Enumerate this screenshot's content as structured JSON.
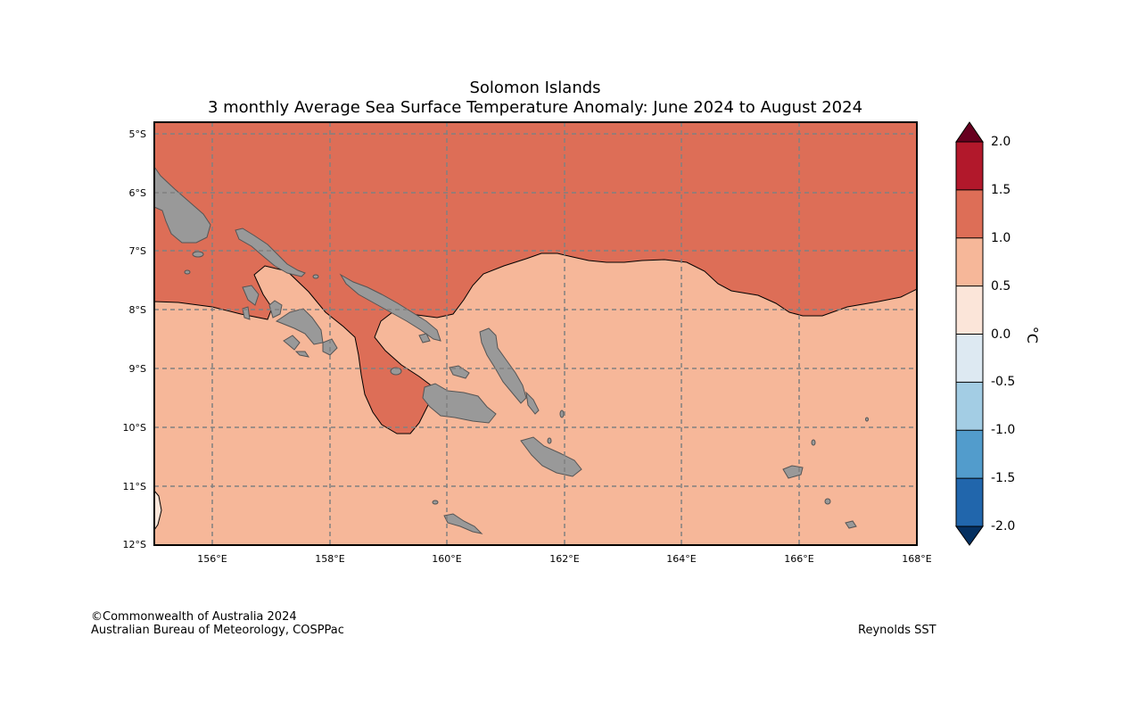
{
  "title": {
    "line1": "Solomon Islands",
    "line2": "3 monthly Average Sea Surface Temperature Anomaly: June 2024 to August 2024"
  },
  "map": {
    "region": "Solomon Islands",
    "lat_range": [
      "5°S",
      "12°S"
    ],
    "lon_range": [
      "155°E",
      "168°E"
    ],
    "lat_labels": [
      "5°S",
      "6°S",
      "7°S",
      "8°S",
      "9°S",
      "10°S",
      "11°S",
      "12°S"
    ],
    "lon_labels": [
      "156°E",
      "158°E",
      "160°E",
      "162°E",
      "164°E",
      "166°E",
      "168°E"
    ],
    "colors": {
      "anomaly_1_0_to_1_5": "#dd6e57",
      "anomaly_0_5_to_1_0": "#f6b799",
      "anomaly_0_0_to_0_5": "#fbe5d9",
      "land": "#999999",
      "gridline": "#808080"
    }
  },
  "colorbar": {
    "unit": "°C",
    "labels": [
      "2.0",
      "1.5",
      "1.0",
      "0.5",
      "0.0",
      "-0.5",
      "-1.0",
      "-1.5",
      "-2.0"
    ],
    "bins": [
      {
        "range": "> 2.0",
        "color": "#67001f"
      },
      {
        "range": "1.5 to 2.0",
        "color": "#b2182b"
      },
      {
        "range": "1.0 to 1.5",
        "color": "#dd6e57"
      },
      {
        "range": "0.5 to 1.0",
        "color": "#f6b799"
      },
      {
        "range": "0.0 to 0.5",
        "color": "#fbe5d9"
      },
      {
        "range": "-0.5 to 0.0",
        "color": "#dde9f2"
      },
      {
        "range": "-1.0 to -0.5",
        "color": "#a3cde4"
      },
      {
        "range": "-1.5 to -1.0",
        "color": "#529ccc"
      },
      {
        "range": "-2.0 to -1.5",
        "color": "#2166ac"
      },
      {
        "range": "< -2.0",
        "color": "#053061"
      }
    ]
  },
  "footer": {
    "copyright": "©Commonwealth of Australia 2024",
    "agency": "Australian Bureau of Meteorology, COSPPac",
    "source": "Reynolds SST"
  }
}
